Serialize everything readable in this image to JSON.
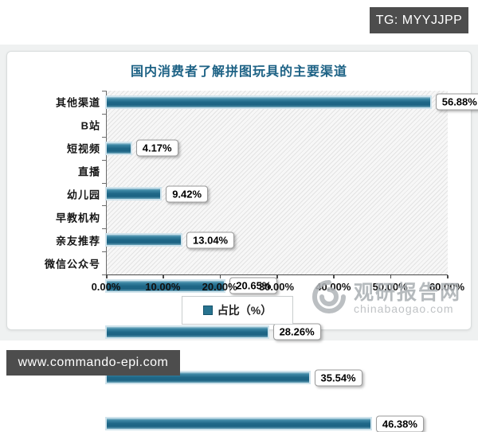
{
  "overlays": {
    "tg_badge": "TG: MYYJJPP",
    "site_badge": "www.commando-epi.com"
  },
  "watermark": {
    "name": "观研报告网",
    "domain": "chinabaogao.com"
  },
  "chart_data": {
    "type": "bar",
    "orientation": "horizontal",
    "title": "国内消费者了解拼图玩具的主要渠道",
    "categories": [
      "其他渠道",
      "B站",
      "短视频",
      "直播",
      "幼儿园",
      "早教机构",
      "亲友推荐",
      "微信公众号"
    ],
    "values": [
      56.88,
      4.17,
      9.42,
      13.04,
      20.65,
      28.26,
      35.54,
      46.38
    ],
    "value_labels": [
      "56.88%",
      "4.17%",
      "9.42%",
      "13.04%",
      "20.65%",
      "28.26%",
      "35.54%",
      "46.38%"
    ],
    "xlim": [
      0,
      60
    ],
    "x_tick_labels": [
      "0.00%",
      "10.00%",
      "20.00%",
      "30.00%",
      "40.00%",
      "50.00%",
      "60.00%"
    ],
    "legend": "占比（%）",
    "legend_position": "bottom",
    "grid": false,
    "plot_background": "diagonal-hatch",
    "bar_color": "#1e6787",
    "bar_outline_color": "#cfe3ec",
    "title_color": "#1d6285"
  }
}
